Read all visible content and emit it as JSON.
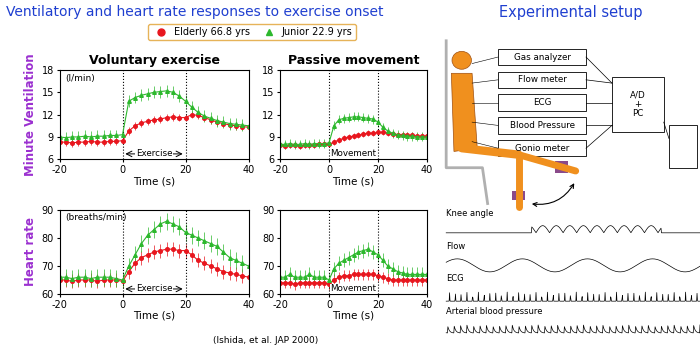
{
  "title": "Ventilatory and heart rate responses to exercise onset",
  "citation": "(Ishida, et al. JAP 2000)",
  "chart_data": [
    {
      "type": "line",
      "title": "Voluntary exercise",
      "ylabel": "Minute Ventilation",
      "unit": "(l/min)",
      "xlabel": "Time (s)",
      "legend": "upper center",
      "span": {
        "label": "Exercise",
        "x": [
          0,
          20
        ]
      },
      "x": [
        -20,
        -18,
        -16,
        -14,
        -12,
        -10,
        -8,
        -6,
        -4,
        -2,
        0,
        2,
        4,
        6,
        8,
        10,
        12,
        14,
        16,
        18,
        20,
        22,
        24,
        26,
        28,
        30,
        32,
        34,
        36,
        38,
        40
      ],
      "series": [
        {
          "name": "Elderly 66.8 yrs",
          "color": "#e8161e",
          "marker": "o",
          "error": 0.5,
          "values": [
            8.3,
            8.3,
            8.2,
            8.3,
            8.3,
            8.4,
            8.3,
            8.3,
            8.4,
            8.4,
            8.5,
            9.8,
            10.5,
            10.9,
            11.1,
            11.3,
            11.4,
            11.6,
            11.7,
            11.6,
            11.6,
            12.0,
            11.9,
            11.6,
            11.3,
            11.0,
            10.8,
            10.6,
            10.5,
            10.4,
            10.3
          ]
        },
        {
          "name": "Junior 22.9 yrs",
          "color": "#2db82d",
          "marker": "^",
          "error": 0.8,
          "values": [
            9.0,
            8.9,
            9.0,
            9.0,
            9.1,
            9.0,
            9.1,
            9.1,
            9.2,
            9.2,
            9.3,
            13.8,
            14.3,
            14.6,
            14.8,
            15.0,
            15.1,
            15.2,
            15.0,
            14.5,
            13.8,
            13.0,
            12.3,
            11.8,
            11.5,
            11.2,
            11.0,
            10.8,
            10.7,
            10.6,
            10.5
          ]
        }
      ],
      "xlim": [
        -20,
        40
      ],
      "ylim": [
        6,
        18
      ],
      "xticks": [
        -20,
        0,
        20,
        40
      ],
      "yticks": [
        6,
        9,
        12,
        15,
        18
      ]
    },
    {
      "type": "line",
      "title": "Passive movement",
      "xlabel": "Time (s)",
      "span": {
        "label": "Movement",
        "x": [
          0,
          20
        ]
      },
      "x": [
        -20,
        -18,
        -16,
        -14,
        -12,
        -10,
        -8,
        -6,
        -4,
        -2,
        0,
        2,
        4,
        6,
        8,
        10,
        12,
        14,
        16,
        18,
        20,
        22,
        24,
        26,
        28,
        30,
        32,
        34,
        36,
        38,
        40
      ],
      "series": [
        {
          "name": "Elderly 66.8 yrs",
          "color": "#e8161e",
          "marker": "o",
          "error": 0.4,
          "values": [
            7.9,
            7.8,
            7.9,
            7.9,
            7.8,
            7.9,
            7.9,
            7.9,
            8.0,
            8.0,
            8.0,
            8.3,
            8.6,
            8.8,
            9.0,
            9.1,
            9.2,
            9.4,
            9.5,
            9.5,
            9.6,
            9.6,
            9.5,
            9.4,
            9.3,
            9.3,
            9.2,
            9.2,
            9.1,
            9.1,
            9.1
          ]
        },
        {
          "name": "Junior 22.9 yrs",
          "color": "#2db82d",
          "marker": "^",
          "error": 0.6,
          "values": [
            8.0,
            8.0,
            8.1,
            8.0,
            8.0,
            8.1,
            8.0,
            8.1,
            8.1,
            8.1,
            8.2,
            10.5,
            11.3,
            11.5,
            11.6,
            11.7,
            11.7,
            11.6,
            11.5,
            11.4,
            11.0,
            10.3,
            9.8,
            9.5,
            9.3,
            9.2,
            9.1,
            9.1,
            9.0,
            9.0,
            9.0
          ]
        }
      ],
      "xlim": [
        -20,
        40
      ],
      "ylim": [
        6,
        18
      ],
      "xticks": [
        -20,
        0,
        20,
        40
      ],
      "yticks": [
        6,
        9,
        12,
        15,
        18
      ]
    },
    {
      "type": "line",
      "ylabel": "Heart rate",
      "unit": "(breaths/min)",
      "xlabel": "Time (s)",
      "span": {
        "label": "Exercise",
        "x": [
          0,
          20
        ]
      },
      "x": [
        -20,
        -18,
        -16,
        -14,
        -12,
        -10,
        -8,
        -6,
        -4,
        -2,
        0,
        2,
        4,
        6,
        8,
        10,
        12,
        14,
        16,
        18,
        20,
        22,
        24,
        26,
        28,
        30,
        32,
        34,
        36,
        38,
        40
      ],
      "series": [
        {
          "name": "Elderly 66.8 yrs",
          "color": "#e8161e",
          "marker": "o",
          "error": 2.5,
          "values": [
            65,
            65,
            64.5,
            65,
            65,
            65,
            64.5,
            65,
            65,
            65,
            64.5,
            68,
            71,
            73,
            74,
            75,
            75.5,
            76,
            76,
            75.5,
            75.5,
            74,
            72,
            71,
            70,
            69,
            68,
            67.5,
            67,
            66.5,
            66
          ]
        },
        {
          "name": "Junior 22.9 yrs",
          "color": "#2db82d",
          "marker": "^",
          "error": 3,
          "values": [
            66,
            66,
            65.5,
            66,
            66,
            65.5,
            66,
            66,
            66,
            65.5,
            65,
            70,
            74,
            78,
            81,
            83,
            85,
            86,
            85,
            84,
            82,
            81,
            80,
            79,
            78,
            77,
            75,
            73,
            72,
            71,
            70
          ]
        }
      ],
      "xlim": [
        -20,
        40
      ],
      "ylim": [
        60,
        90
      ],
      "xticks": [
        -20,
        0,
        20,
        40
      ],
      "yticks": [
        60,
        70,
        80,
        90
      ]
    },
    {
      "type": "line",
      "xlabel": "Time (s)",
      "span": {
        "label": "Movement",
        "x": [
          0,
          20
        ]
      },
      "x": [
        -20,
        -18,
        -16,
        -14,
        -12,
        -10,
        -8,
        -6,
        -4,
        -2,
        0,
        2,
        4,
        6,
        8,
        10,
        12,
        14,
        16,
        18,
        20,
        22,
        24,
        26,
        28,
        30,
        32,
        34,
        36,
        38,
        40
      ],
      "series": [
        {
          "name": "Elderly 66.8 yrs",
          "color": "#e8161e",
          "marker": "o",
          "error": 2,
          "values": [
            64,
            64,
            64,
            63.5,
            64,
            64,
            64,
            64,
            64,
            64,
            63.5,
            65,
            66,
            66.5,
            66.5,
            67,
            67,
            67,
            67,
            67,
            66.5,
            66,
            65.5,
            65,
            65,
            65,
            65,
            65,
            65,
            65,
            65
          ]
        },
        {
          "name": "Junior 22.9 yrs",
          "color": "#2db82d",
          "marker": "^",
          "error": 2.5,
          "values": [
            66,
            66,
            67,
            66,
            66,
            66,
            67,
            66,
            66,
            66,
            65,
            69,
            71,
            72,
            73,
            74,
            75,
            75.5,
            76,
            75,
            74,
            72,
            70,
            69,
            68,
            67.5,
            67,
            67,
            67,
            67,
            67
          ]
        }
      ],
      "xlim": [
        -20,
        40
      ],
      "ylim": [
        60,
        90
      ],
      "xticks": [
        -20,
        0,
        20,
        40
      ],
      "yticks": [
        60,
        70,
        80,
        90
      ]
    }
  ],
  "diagram": {
    "title": "Experimental setup",
    "boxes": [
      "Gas analyzer",
      "Flow meter",
      "ECG",
      "Blood Pressure",
      "Gonio meter"
    ],
    "computer": [
      "A/D",
      "+",
      "PC"
    ],
    "traces": [
      "Knee angle",
      "Flow",
      "ECG",
      "Arterial blood pressure"
    ]
  }
}
